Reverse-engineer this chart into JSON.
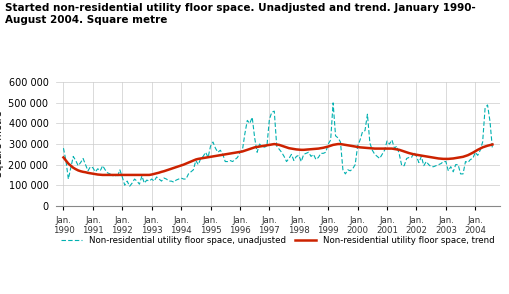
{
  "title": "Started non-residential utility floor space. Unadjusted and trend. January 1990-\nAugust 2004. Square metre",
  "ylabel": "Square metre",
  "ylim": [
    0,
    600000
  ],
  "yticks": [
    0,
    100000,
    200000,
    300000,
    400000,
    500000,
    600000
  ],
  "unadj_color": "#00b0b0",
  "trend_color": "#cc2200",
  "legend_unadj": "Non-residential utility floor space, unadjusted",
  "legend_trend": "Non-residential utility floor space, trend",
  "unadjusted": [
    280000,
    220000,
    130000,
    185000,
    240000,
    220000,
    195000,
    210000,
    230000,
    200000,
    170000,
    190000,
    185000,
    165000,
    180000,
    170000,
    195000,
    175000,
    160000,
    155000,
    145000,
    150000,
    140000,
    175000,
    140000,
    100000,
    120000,
    95000,
    110000,
    130000,
    120000,
    105000,
    145000,
    110000,
    125000,
    120000,
    130000,
    120000,
    140000,
    130000,
    120000,
    135000,
    130000,
    120000,
    120000,
    115000,
    125000,
    130000,
    135000,
    130000,
    130000,
    155000,
    165000,
    175000,
    220000,
    200000,
    230000,
    240000,
    260000,
    235000,
    290000,
    310000,
    280000,
    260000,
    270000,
    250000,
    215000,
    215000,
    220000,
    215000,
    225000,
    235000,
    260000,
    270000,
    350000,
    415000,
    400000,
    430000,
    330000,
    260000,
    300000,
    290000,
    285000,
    290000,
    420000,
    455000,
    460000,
    290000,
    275000,
    260000,
    240000,
    215000,
    230000,
    250000,
    220000,
    240000,
    245000,
    215000,
    250000,
    255000,
    260000,
    240000,
    250000,
    225000,
    235000,
    255000,
    255000,
    260000,
    300000,
    320000,
    500000,
    340000,
    330000,
    310000,
    175000,
    155000,
    175000,
    170000,
    180000,
    200000,
    290000,
    320000,
    360000,
    365000,
    445000,
    305000,
    270000,
    250000,
    240000,
    230000,
    250000,
    270000,
    315000,
    300000,
    320000,
    280000,
    290000,
    250000,
    195000,
    195000,
    230000,
    235000,
    235000,
    260000,
    240000,
    210000,
    240000,
    195000,
    215000,
    200000,
    190000,
    190000,
    195000,
    200000,
    205000,
    215000,
    215000,
    170000,
    190000,
    165000,
    200000,
    200000,
    155000,
    155000,
    215000,
    210000,
    225000,
    230000,
    260000,
    245000,
    270000,
    310000,
    475000,
    490000,
    410000,
    275000
  ],
  "trend": [
    235000,
    220000,
    205000,
    195000,
    185000,
    178000,
    172000,
    168000,
    165000,
    163000,
    160000,
    158000,
    156000,
    154000,
    152000,
    151000,
    150000,
    150000,
    150000,
    150000,
    150000,
    150000,
    150000,
    150000,
    150000,
    150000,
    150000,
    150000,
    150000,
    150000,
    150000,
    150000,
    150000,
    150000,
    150000,
    150000,
    152000,
    155000,
    158000,
    161000,
    165000,
    168000,
    172000,
    176000,
    180000,
    184000,
    188000,
    192000,
    196000,
    200000,
    205000,
    210000,
    215000,
    220000,
    225000,
    228000,
    230000,
    232000,
    234000,
    236000,
    238000,
    240000,
    242000,
    244000,
    246000,
    248000,
    250000,
    252000,
    254000,
    256000,
    258000,
    260000,
    262000,
    264000,
    268000,
    272000,
    276000,
    280000,
    284000,
    286000,
    288000,
    290000,
    292000,
    294000,
    296000,
    298000,
    300000,
    298000,
    296000,
    292000,
    288000,
    284000,
    280000,
    278000,
    276000,
    274000,
    273000,
    272000,
    272000,
    273000,
    274000,
    275000,
    276000,
    277000,
    278000,
    280000,
    282000,
    285000,
    288000,
    292000,
    296000,
    298000,
    300000,
    300000,
    298000,
    296000,
    294000,
    292000,
    290000,
    288000,
    286000,
    284000,
    283000,
    282000,
    281000,
    280000,
    279000,
    278000,
    278000,
    278000,
    278000,
    278000,
    278000,
    278000,
    278000,
    276000,
    274000,
    272000,
    268000,
    264000,
    260000,
    256000,
    253000,
    250000,
    248000,
    246000,
    244000,
    242000,
    240000,
    238000,
    236000,
    234000,
    232000,
    230000,
    229000,
    228000,
    228000,
    228000,
    229000,
    230000,
    232000,
    234000,
    236000,
    238000,
    242000,
    246000,
    252000,
    258000,
    265000,
    272000,
    278000,
    284000,
    288000,
    292000,
    295000,
    298000
  ]
}
